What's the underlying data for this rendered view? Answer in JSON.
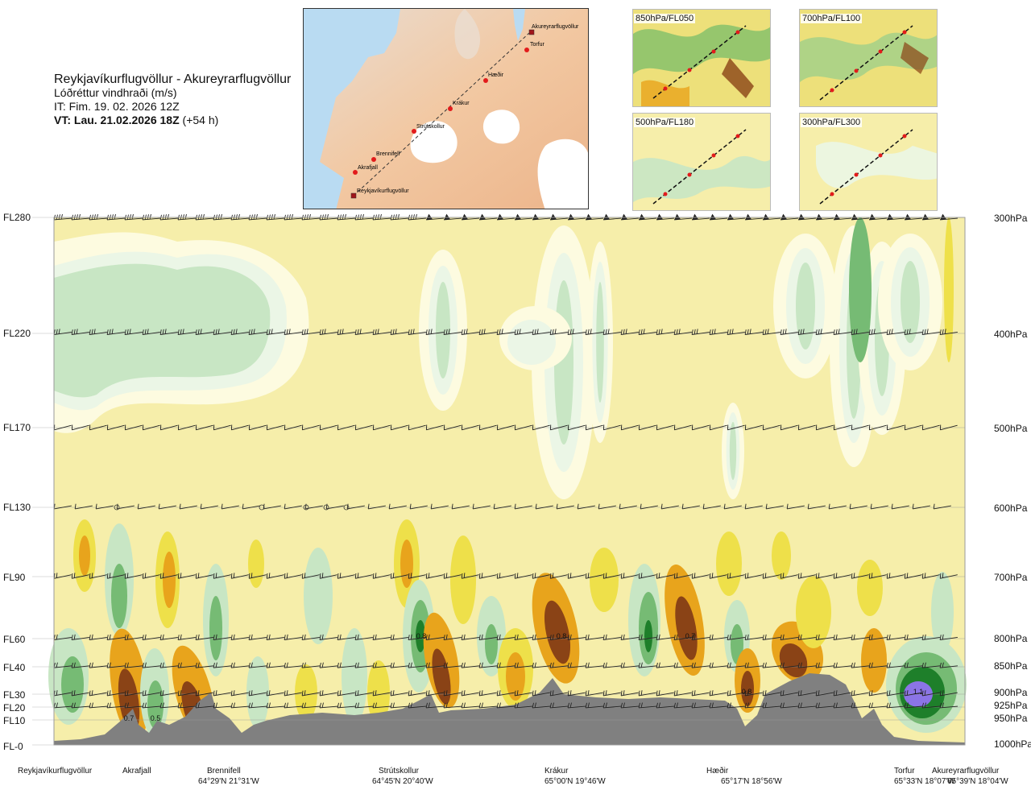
{
  "header": {
    "title": "Reykjavíkurflugvöllur - Akureyrarflugvöllur",
    "subtitle": "Lóðréttur vindhraði (m/s)",
    "it_line": "IT: Fim. 19. 02. 2026 12Z",
    "vt_label": "VT: Lau. 21.02.2026 18Z",
    "vt_offset": "(+54 h)"
  },
  "route_map": {
    "waypoints": [
      {
        "name": "Akureyrarflugvöllur",
        "type": "airport"
      },
      {
        "name": "Torfur",
        "type": "point"
      },
      {
        "name": "Hæðir",
        "type": "point"
      },
      {
        "name": "Krákur",
        "type": "point"
      },
      {
        "name": "Strútskollur",
        "type": "point"
      },
      {
        "name": "Brennifell",
        "type": "point"
      },
      {
        "name": "Akrafjall",
        "type": "point"
      },
      {
        "name": "Reykjavíkurflugvöllur",
        "type": "airport"
      }
    ]
  },
  "level_maps": [
    {
      "label": "850hPa/FL050"
    },
    {
      "label": "700hPa/FL100"
    },
    {
      "label": "500hPa/FL180"
    },
    {
      "label": "300hPa/FL300"
    }
  ],
  "chart_data": {
    "type": "heatmap",
    "variable": "Lóðréttur vindhraði (m/s)",
    "y_levels": [
      {
        "fl": "FL280",
        "hpa": "300hPa"
      },
      {
        "fl": "FL220",
        "hpa": "400hPa"
      },
      {
        "fl": "FL170",
        "hpa": "500hPa"
      },
      {
        "fl": "FL130",
        "hpa": "600hPa"
      },
      {
        "fl": "FL90",
        "hpa": "700hPa"
      },
      {
        "fl": "FL60",
        "hpa": "800hPa"
      },
      {
        "fl": "FL40",
        "hpa": "850hPa"
      },
      {
        "fl": "FL30",
        "hpa": "900hPa"
      },
      {
        "fl": "FL20",
        "hpa": "925hPa"
      },
      {
        "fl": "FL10",
        "hpa": "950hPa"
      },
      {
        "fl": "FL-0",
        "hpa": "1000hPa"
      }
    ],
    "x_locations": [
      {
        "name": "Reykjavíkurflugvöllur",
        "coord": ""
      },
      {
        "name": "Akrafjall",
        "coord": ""
      },
      {
        "name": "Brennifell",
        "coord": "64°29'N 21°31'W"
      },
      {
        "name": "Strútskollur",
        "coord": "64°45'N 20°40'W"
      },
      {
        "name": "Krákur",
        "coord": "65°00'N 19°46'W"
      },
      {
        "name": "Hæðir",
        "coord": "65°17'N 18°56'W"
      },
      {
        "name": "Torfur",
        "coord": "65°33'N 18°07'W"
      },
      {
        "name": "Akureyrarflugvöllur",
        "coord": "65°39'N 18°04'W"
      }
    ],
    "annotations": [
      "0.7",
      "0.5",
      "0.8",
      "0.8",
      "0.7",
      "0.8",
      "1.1"
    ],
    "colors": {
      "light_yellow": "#f6eeaa",
      "cream": "#fdfbe0",
      "pale_green": "#ebf6e6",
      "light_green": "#c8e6c4",
      "green": "#76bb74",
      "dark_green": "#1e7f2a",
      "yellow": "#eee04a",
      "orange": "#e8a41c",
      "brown": "#8a4316",
      "purple": "#8b74e6",
      "terrain": "#808080"
    }
  }
}
